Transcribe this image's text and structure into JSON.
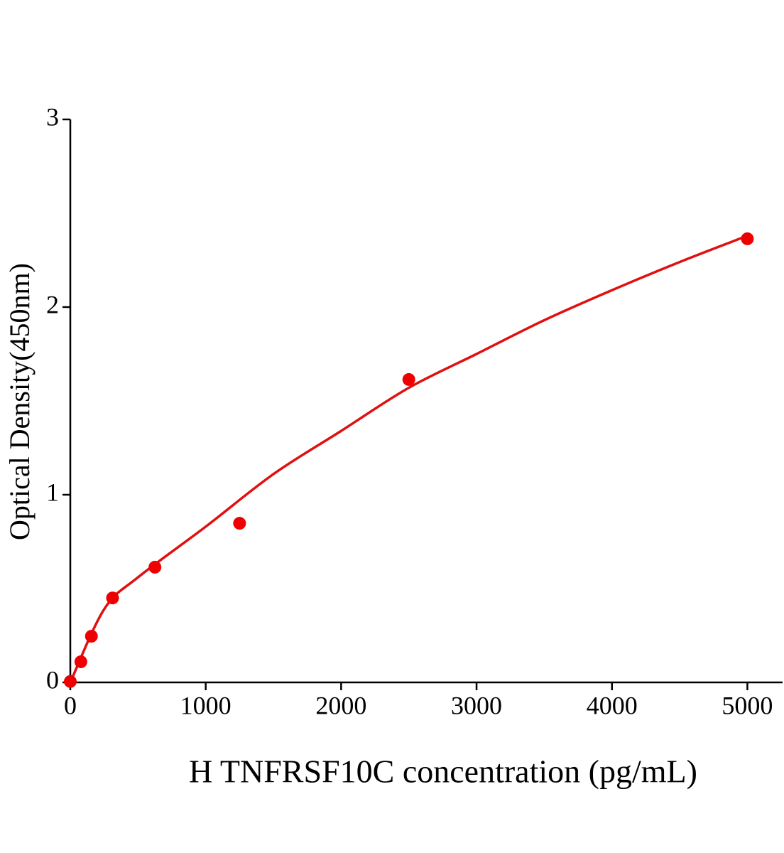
{
  "chart_data": {
    "type": "scatter",
    "x_label": "H TNFRSF10C concentration (pg/mL)",
    "y_label": "Optical Density(450nm)",
    "xlim": [
      0,
      5260
    ],
    "ylim": [
      0,
      3
    ],
    "xticks": [
      0,
      1000,
      2000,
      3000,
      4000,
      5000
    ],
    "yticks": [
      0,
      1,
      2,
      3
    ],
    "points": {
      "color": "#ee0000",
      "x": [
        0,
        78,
        156,
        312,
        625,
        1250,
        2500,
        5000
      ],
      "values": [
        0.005,
        0.11,
        0.246,
        0.45,
        0.614,
        0.848,
        1.614,
        2.364
      ]
    },
    "fit": {
      "color": "#e01010",
      "x": [
        0,
        250,
        500,
        1000,
        1500,
        2000,
        2500,
        3000,
        3500,
        4000,
        4500,
        5000
      ],
      "values": [
        0,
        0.39,
        0.56,
        0.83,
        1.11,
        1.34,
        1.57,
        1.75,
        1.93,
        2.09,
        2.24,
        2.38
      ]
    }
  }
}
